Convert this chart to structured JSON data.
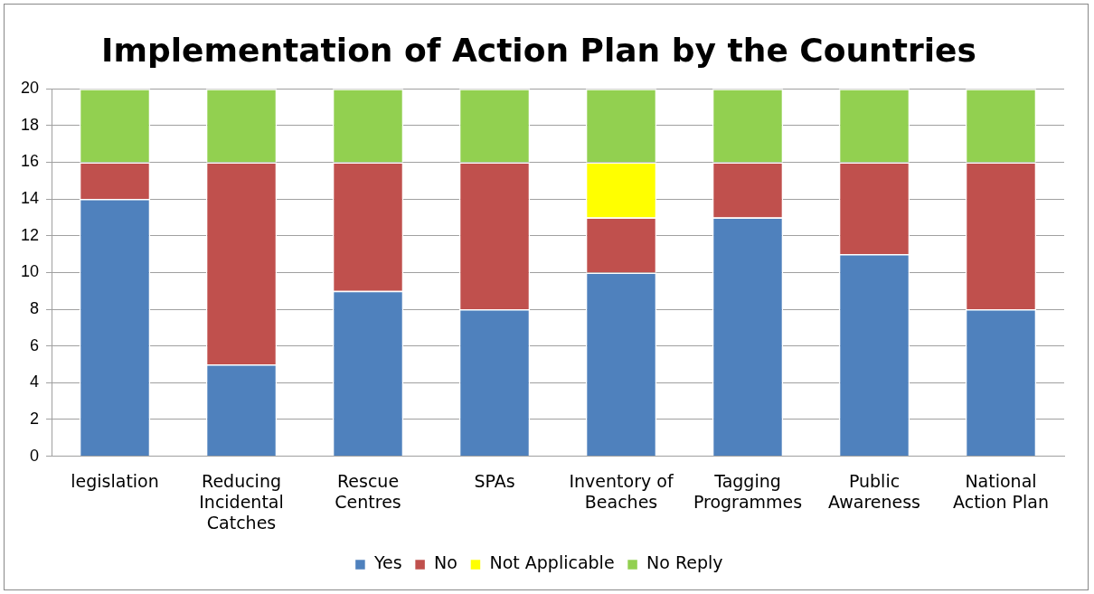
{
  "chart_data": {
    "type": "bar",
    "title": "Implementation of Action Plan by the Countries",
    "stacked": true,
    "categories": [
      "legislation",
      "Reducing Incidental Catches",
      "Rescue Centres",
      "SPAs",
      "Inventory of Beaches",
      "Tagging Programmes",
      "Public Awareness",
      "National Action Plan"
    ],
    "series": [
      {
        "name": "Yes",
        "color": "#4f81bd",
        "values": [
          14,
          5,
          9,
          8,
          10,
          13,
          11,
          8
        ]
      },
      {
        "name": "No",
        "color": "#c0504d",
        "values": [
          2,
          11,
          7,
          8,
          3,
          3,
          5,
          8
        ]
      },
      {
        "name": "Not Applicable",
        "color": "#ffff00",
        "values": [
          0,
          0,
          0,
          0,
          3,
          0,
          0,
          0
        ]
      },
      {
        "name": "No Reply",
        "color": "#92d050",
        "values": [
          4,
          4,
          4,
          4,
          4,
          4,
          4,
          4
        ]
      }
    ],
    "ylim": [
      0,
      20
    ],
    "yticks": [
      0,
      2,
      4,
      6,
      8,
      10,
      12,
      14,
      16,
      18,
      20
    ],
    "grid": "y",
    "legend": "bottom"
  }
}
